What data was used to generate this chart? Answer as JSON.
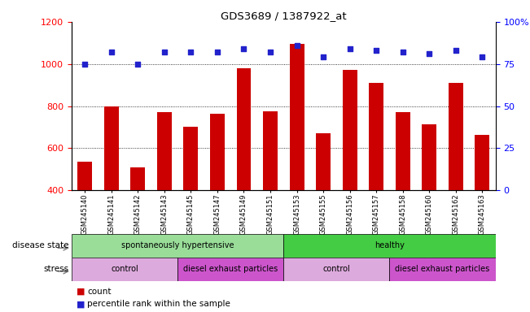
{
  "title": "GDS3689 / 1387922_at",
  "samples": [
    "GSM245140",
    "GSM245141",
    "GSM245142",
    "GSM245143",
    "GSM245145",
    "GSM245147",
    "GSM245149",
    "GSM245151",
    "GSM245153",
    "GSM245155",
    "GSM245156",
    "GSM245157",
    "GSM245158",
    "GSM245160",
    "GSM245162",
    "GSM245163"
  ],
  "counts": [
    535,
    800,
    510,
    770,
    700,
    765,
    980,
    775,
    1095,
    670,
    970,
    910,
    770,
    715,
    910,
    665
  ],
  "percentiles": [
    75,
    82,
    75,
    82,
    82,
    82,
    84,
    82,
    86,
    79,
    84,
    83,
    82,
    81,
    83,
    79
  ],
  "ylim_left": [
    400,
    1200
  ],
  "ylim_right": [
    0,
    100
  ],
  "yticks_left": [
    400,
    600,
    800,
    1000,
    1200
  ],
  "yticks_right": [
    0,
    25,
    50,
    75,
    100
  ],
  "bar_color": "#cc0000",
  "dot_color": "#2222cc",
  "grid_color": "#000000",
  "disease_state_groups": [
    {
      "label": "spontaneously hypertensive",
      "start": 0,
      "end": 8,
      "color": "#99dd99"
    },
    {
      "label": "healthy",
      "start": 8,
      "end": 16,
      "color": "#44cc44"
    }
  ],
  "stress_groups": [
    {
      "label": "control",
      "start": 0,
      "end": 4,
      "color": "#ddaadd"
    },
    {
      "label": "diesel exhaust particles",
      "start": 4,
      "end": 8,
      "color": "#cc55cc"
    },
    {
      "label": "control",
      "start": 8,
      "end": 12,
      "color": "#ddaadd"
    },
    {
      "label": "diesel exhaust particles",
      "start": 12,
      "end": 16,
      "color": "#cc55cc"
    }
  ],
  "legend_count_color": "#cc0000",
  "legend_dot_color": "#2222cc",
  "background_color": "#ffffff",
  "bar_bottom": 400
}
